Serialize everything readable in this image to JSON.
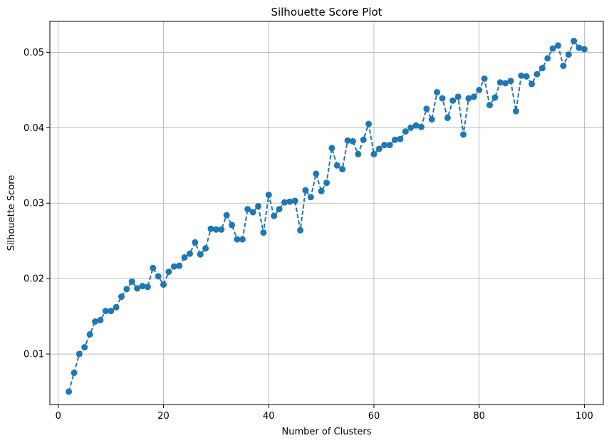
{
  "chart_data": {
    "type": "line",
    "title": "Silhouette Score Plot",
    "xlabel": "Number of Clusters",
    "ylabel": "Silhouette Score",
    "xlim": [
      -1.6,
      103.6
    ],
    "ylim": [
      0.0033,
      0.0541
    ],
    "xticks": [
      0,
      20,
      40,
      60,
      80,
      100
    ],
    "xtick_labels": [
      "0",
      "20",
      "40",
      "60",
      "80",
      "100"
    ],
    "yticks": [
      0.01,
      0.02,
      0.03,
      0.04,
      0.05
    ],
    "ytick_labels": [
      "0.01",
      "0.02",
      "0.03",
      "0.04",
      "0.05"
    ],
    "grid": true,
    "line_style": "dashed",
    "marker": "circle",
    "color": "#1f77b4",
    "x": [
      2,
      3,
      4,
      5,
      6,
      7,
      8,
      9,
      10,
      11,
      12,
      13,
      14,
      15,
      16,
      17,
      18,
      19,
      20,
      21,
      22,
      23,
      24,
      25,
      26,
      27,
      28,
      29,
      30,
      31,
      32,
      33,
      34,
      35,
      36,
      37,
      38,
      39,
      40,
      41,
      42,
      43,
      44,
      45,
      46,
      47,
      48,
      49,
      50,
      51,
      52,
      53,
      54,
      55,
      56,
      57,
      58,
      59,
      60,
      61,
      62,
      63,
      64,
      65,
      66,
      67,
      68,
      69,
      70,
      71,
      72,
      73,
      74,
      75,
      76,
      77,
      78,
      79,
      80,
      81,
      82,
      83,
      84,
      85,
      86,
      87,
      88,
      89,
      90,
      91,
      92,
      93,
      94,
      95,
      96,
      97,
      98,
      99,
      100
    ],
    "y": [
      0.005,
      0.0075,
      0.01,
      0.0109,
      0.0126,
      0.0143,
      0.0145,
      0.0157,
      0.0157,
      0.0162,
      0.0176,
      0.0186,
      0.0196,
      0.0187,
      0.019,
      0.0189,
      0.0214,
      0.0203,
      0.0192,
      0.0209,
      0.0216,
      0.0217,
      0.0228,
      0.0233,
      0.0248,
      0.0232,
      0.024,
      0.0266,
      0.0265,
      0.0265,
      0.0284,
      0.0271,
      0.0252,
      0.0252,
      0.0292,
      0.0288,
      0.0296,
      0.0261,
      0.0311,
      0.0283,
      0.0292,
      0.0301,
      0.0302,
      0.0303,
      0.0264,
      0.0317,
      0.0308,
      0.0339,
      0.0316,
      0.0327,
      0.0373,
      0.035,
      0.0345,
      0.0383,
      0.0382,
      0.0365,
      0.0384,
      0.0405,
      0.0365,
      0.0372,
      0.0377,
      0.0377,
      0.0384,
      0.0385,
      0.0395,
      0.04,
      0.0403,
      0.0401,
      0.0425,
      0.0411,
      0.0447,
      0.0439,
      0.0413,
      0.0436,
      0.0441,
      0.0391,
      0.0439,
      0.0441,
      0.045,
      0.0465,
      0.043,
      0.044,
      0.046,
      0.0459,
      0.0462,
      0.0422,
      0.0469,
      0.0468,
      0.0458,
      0.0471,
      0.0479,
      0.0492,
      0.0505,
      0.0509,
      0.0482,
      0.0497,
      0.0515,
      0.0506,
      0.0504
    ]
  }
}
